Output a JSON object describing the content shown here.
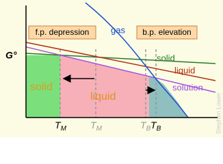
{
  "axis_label": "G°",
  "curve_labels": {
    "gas": "gas",
    "solid": "solid",
    "liquid": "liquid",
    "solution": "solution"
  },
  "callouts": {
    "fp": "f.p. depression",
    "bp": "b.p. elevation"
  },
  "regions": {
    "solid": "solid",
    "liquid": "liquid"
  },
  "temperatures": [
    {
      "main": "T",
      "sub": "M"
    },
    {
      "main": "T",
      "sub": "M"
    },
    {
      "main": "T",
      "sub": "B"
    },
    {
      "main": "T",
      "sub": "B"
    }
  ],
  "credit": "Stephen Lower"
}
